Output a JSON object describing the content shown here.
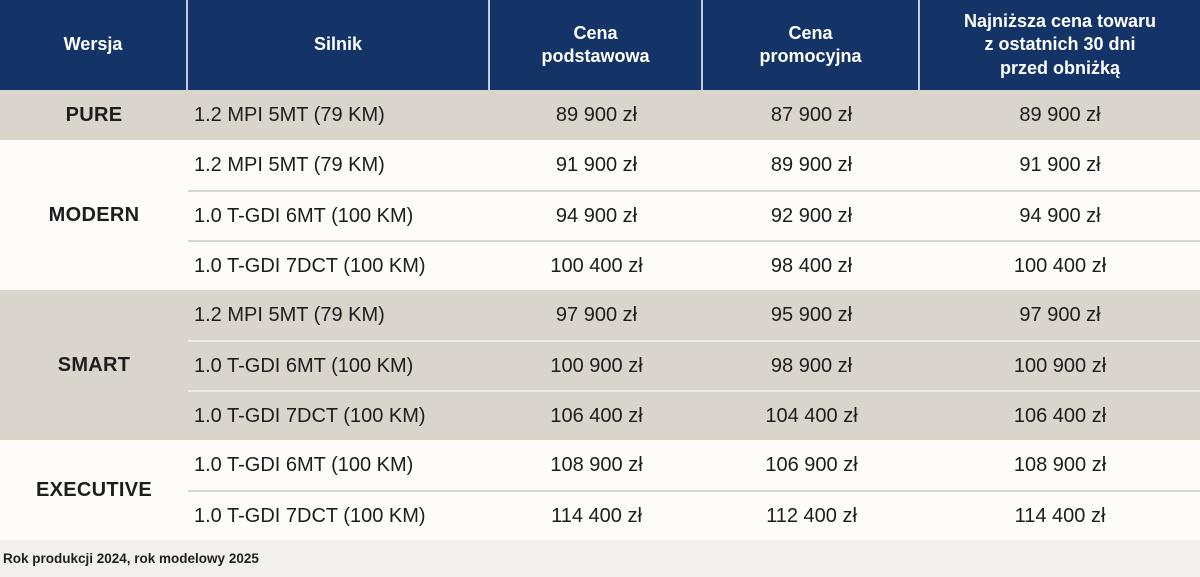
{
  "header": {
    "col1": "Wersja",
    "col2": "Silnik",
    "col3": "Cena\npodstawowa",
    "col4": "Cena\npromocyjna",
    "col5": "Najniższa cena towaru\nz ostatnich 30 dni\nprzed obniżką"
  },
  "footnote": "Rok produkcji 2024, rok modelowy 2025",
  "colors": {
    "header_navy": "#143468",
    "header_divider": "#bccde0",
    "header_text": "#ffffff",
    "row_beige": "#d9d5cd",
    "row_white": "#fdfcfa",
    "separator_on_white": "#d8d6d3",
    "separator_on_beige": "#eceae5",
    "footnote_bg": "#f2f0ed",
    "body_text": "#1d1d1d"
  },
  "chart_data": {
    "type": "table",
    "title": "",
    "columns": [
      "Wersja",
      "Silnik",
      "Cena podstawowa",
      "Cena promocyjna",
      "Najniższa cena towaru z ostatnich 30 dni przed obniżką"
    ],
    "currency": "zł",
    "sections": [
      {
        "version": "PURE",
        "rows": [
          {
            "engine": "1.2 MPI 5MT (79 KM)",
            "base": "89 900 zł",
            "promo": "87 900 zł",
            "lowest": "89 900 zł"
          }
        ]
      },
      {
        "version": "MODERN",
        "rows": [
          {
            "engine": "1.2 MPI 5MT (79 KM)",
            "base": "91 900 zł",
            "promo": "89 900 zł",
            "lowest": "91 900 zł"
          },
          {
            "engine": "1.0 T-GDI 6MT (100 KM)",
            "base": "94 900 zł",
            "promo": "92 900 zł",
            "lowest": "94 900 zł"
          },
          {
            "engine": "1.0 T-GDI 7DCT (100 KM)",
            "base": "100 400 zł",
            "promo": "98 400 zł",
            "lowest": "100 400 zł"
          }
        ]
      },
      {
        "version": "SMART",
        "rows": [
          {
            "engine": "1.2 MPI 5MT (79 KM)",
            "base": "97 900 zł",
            "promo": "95 900 zł",
            "lowest": "97 900 zł"
          },
          {
            "engine": "1.0 T-GDI 6MT (100 KM)",
            "base": "100 900 zł",
            "promo": "98 900 zł",
            "lowest": "100 900 zł"
          },
          {
            "engine": "1.0 T-GDI 7DCT (100 KM)",
            "base": "106 400 zł",
            "promo": "104 400 zł",
            "lowest": "106 400 zł"
          }
        ]
      },
      {
        "version": "EXECUTIVE",
        "rows": [
          {
            "engine": "1.0 T-GDI 6MT (100 KM)",
            "base": "108 900 zł",
            "promo": "106 900 zł",
            "lowest": "108 900 zł"
          },
          {
            "engine": "1.0 T-GDI 7DCT (100 KM)",
            "base": "114 400 zł",
            "promo": "112 400 zł",
            "lowest": "114 400 zł"
          }
        ]
      }
    ]
  }
}
